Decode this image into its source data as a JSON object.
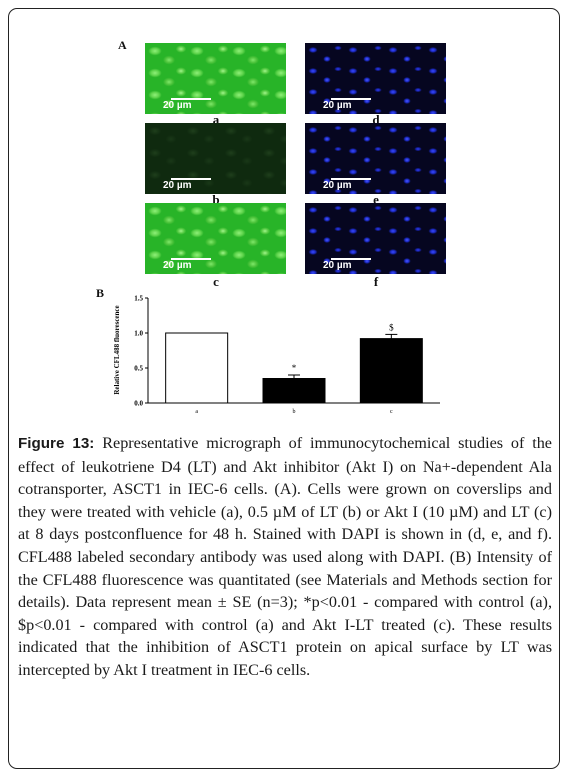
{
  "figure_label_a": "A",
  "figure_label_b": "B",
  "panels": [
    {
      "label": "a",
      "scale": "20 µm"
    },
    {
      "label": "d",
      "scale": "20 µm"
    },
    {
      "label": "b",
      "scale": "20 µm"
    },
    {
      "label": "e",
      "scale": "20 µm"
    },
    {
      "label": "c",
      "scale": "20 µm"
    },
    {
      "label": "f",
      "scale": "20 µm"
    }
  ],
  "colors": {
    "green_stain": "#28b428",
    "dapi_blue": "#1d2bc8",
    "bar_filled": "#000000",
    "bar_empty": "#ffffff"
  },
  "chart_data": {
    "type": "bar",
    "categories": [
      "a",
      "b",
      "c"
    ],
    "values": [
      1.0,
      0.35,
      0.92
    ],
    "errors": [
      0,
      0.05,
      0.06
    ],
    "annotations": [
      "",
      "*",
      "$"
    ],
    "fills": [
      "#ffffff",
      "#000000",
      "#000000"
    ],
    "ylabel": "Relative CFL488 fluorescence",
    "ylim": [
      0,
      1.5
    ],
    "yticks": [
      "0.0",
      "0.5",
      "1.0",
      "1.5"
    ]
  },
  "caption": {
    "label": "Figure 13:",
    "text": " Representative micrograph of immunocytochemical studies of the effect of leukotriene D4 (LT) and Akt inhibitor (Akt I) on Na+-dependent Ala cotransporter, ASCT1 in IEC-6 cells. (A). Cells were grown on coverslips and they were treated with vehicle (a), 0.5 µM of LT (b) or Akt I (10 µM) and LT (c) at 8 days postconfluence for 48 h. Stained with DAPI is shown in (d, e, and f). CFL488 labeled secondary antibody was used along with DAPI. (B) Intensity of the CFL488 fluorescence was quantitated (see Materials and Methods section for details). Data represent mean ± SE (n=3); *p<0.01 - compared with control (a), $p<0.01 - compared with control (a) and Akt I-LT treated (c). These results indicated that the inhibition of ASCT1 protein on apical surface by LT was intercepted by Akt I treatment in IEC-6 cells."
  }
}
